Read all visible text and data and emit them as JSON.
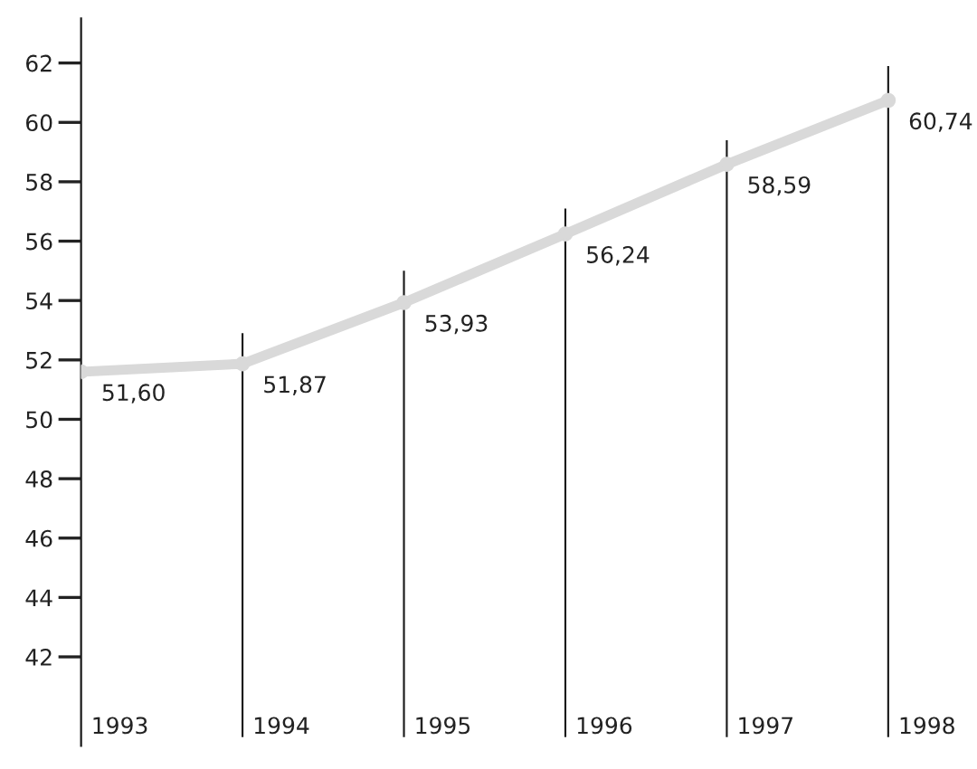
{
  "chart_data": {
    "type": "line",
    "categories": [
      "1993",
      "1994",
      "1995",
      "1996",
      "1997",
      "1998"
    ],
    "series": [
      {
        "type": "bar",
        "color": "#1a1a1a",
        "base": [
          null,
          39.3,
          39.3,
          39.3,
          39.3,
          39.3
        ],
        "values": [
          null,
          13.6,
          15.7,
          17.8,
          20.1,
          22.6
        ]
      },
      {
        "color": "#d9d9d9",
        "values": [
          51.6,
          51.87,
          53.93,
          56.24,
          58.59,
          60.74
        ],
        "value_labels": [
          "51,60",
          "51,87",
          "53,93",
          "56,24",
          "58,59",
          "60,74"
        ]
      }
    ],
    "ylim": [
      39,
      63.5
    ],
    "yticks": [
      42,
      44,
      46,
      48,
      50,
      52,
      54,
      56,
      58,
      60,
      62
    ],
    "grid": false,
    "marker": "circle",
    "line_style": "solid"
  }
}
